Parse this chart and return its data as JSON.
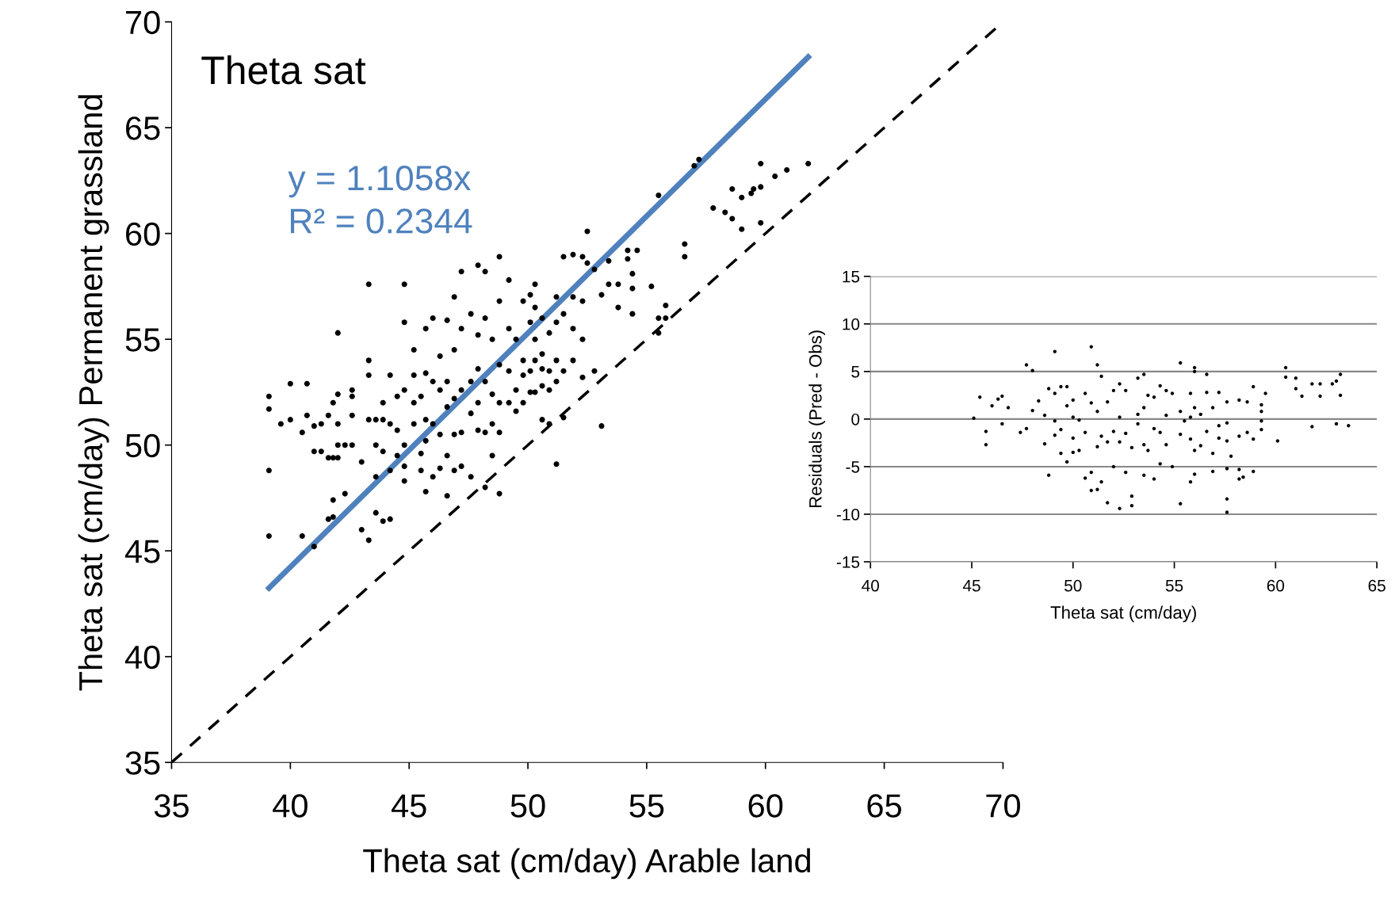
{
  "chart_data": [
    {
      "type": "scatter",
      "title": "Theta sat",
      "xlabel": "Theta sat (cm/day) Arable land",
      "ylabel": "Theta sat (cm/day) Permanent grassland",
      "xlim": [
        35,
        70
      ],
      "ylim": [
        35,
        70
      ],
      "xticks": [
        35,
        40,
        45,
        50,
        55,
        60,
        65,
        70
      ],
      "yticks": [
        35,
        40,
        45,
        50,
        55,
        60,
        65,
        70
      ],
      "grid": false,
      "annotations": [
        "y = 1.1058x",
        "R² = 0.2344"
      ],
      "series": [
        {
          "color": "#000000",
          "marker": "circle",
          "x": [
            39.1,
            39.1,
            39.1,
            39.1,
            39.6,
            40.0,
            40.0,
            40.5,
            40.5,
            40.7,
            40.7,
            41.0,
            41.0,
            41.0,
            41.3,
            41.3,
            41.6,
            41.6,
            41.6,
            41.8,
            41.8,
            41.8,
            41.8,
            42.0,
            42.0,
            42.0,
            42.0,
            42.0,
            42.3,
            42.3,
            42.6,
            42.6,
            42.6,
            42.6,
            43.0,
            43.0,
            43.3,
            43.3,
            43.3,
            43.3,
            43.3,
            43.6,
            43.6,
            43.6,
            43.6,
            43.9,
            43.9,
            43.9,
            43.9,
            44.2,
            44.2,
            44.2,
            44.2,
            44.5,
            44.5,
            44.5,
            44.8,
            44.8,
            44.8,
            44.8,
            44.8,
            44.8,
            45.2,
            45.2,
            45.2,
            45.2,
            45.5,
            45.5,
            45.5,
            45.7,
            45.7,
            45.7,
            45.7,
            45.7,
            46.0,
            46.0,
            46.0,
            46.0,
            46.3,
            46.3,
            46.3,
            46.3,
            46.6,
            46.6,
            46.6,
            46.6,
            46.6,
            46.9,
            46.9,
            46.9,
            46.9,
            46.9,
            47.2,
            47.2,
            47.2,
            47.2,
            47.2,
            47.6,
            47.6,
            47.6,
            47.6,
            47.9,
            47.9,
            47.9,
            47.9,
            47.9,
            48.2,
            48.2,
            48.2,
            48.2,
            48.2,
            48.5,
            48.5,
            48.5,
            48.5,
            48.8,
            48.8,
            48.8,
            48.8,
            48.8,
            48.8,
            49.2,
            49.2,
            49.2,
            49.2,
            49.5,
            49.5,
            49.5,
            49.8,
            49.8,
            49.8,
            49.8,
            50.1,
            50.1,
            50.1,
            50.1,
            50.3,
            50.3,
            50.3,
            50.3,
            50.3,
            50.6,
            50.6,
            50.6,
            50.6,
            50.6,
            50.9,
            50.9,
            50.9,
            50.9,
            51.2,
            51.2,
            51.2,
            51.2,
            51.2,
            51.5,
            51.5,
            51.5,
            51.5,
            51.9,
            51.9,
            51.9,
            51.9,
            52.3,
            52.3,
            52.3,
            52.3,
            52.5,
            52.5,
            52.8,
            52.8,
            53.1,
            53.1,
            53.4,
            53.4,
            53.8,
            53.8,
            54.2,
            54.2,
            54.4,
            54.4,
            54.4,
            54.6,
            55.2,
            55.5,
            55.5,
            55.5,
            55.8,
            55.8,
            56.6,
            56.6,
            57.0,
            57.2,
            57.8,
            58.3,
            58.6,
            58.6,
            59.0,
            59.0,
            59.4,
            59.5,
            59.8,
            59.8,
            59.8,
            60.4,
            60.9,
            61.8
          ],
          "values": [
            52.3,
            51.7,
            48.8,
            45.7,
            51.0,
            52.9,
            51.2,
            45.7,
            50.6,
            52.9,
            51.4,
            45.2,
            49.7,
            50.9,
            51.0,
            49.7,
            49.4,
            51.4,
            46.5,
            49.4,
            47.4,
            52.0,
            46.6,
            55.3,
            52.4,
            51.0,
            49.4,
            50.0,
            50.0,
            47.7,
            52.6,
            51.4,
            52.3,
            50.0,
            49.2,
            46.0,
            57.6,
            54.0,
            53.3,
            51.2,
            45.5,
            50.0,
            51.2,
            48.5,
            46.8,
            52.0,
            51.2,
            49.7,
            46.4,
            53.3,
            51.0,
            48.8,
            46.5,
            50.7,
            52.3,
            49.5,
            57.6,
            55.8,
            52.6,
            50.0,
            48.3,
            49.0,
            54.5,
            51.0,
            53.3,
            52.0,
            52.3,
            49.6,
            48.8,
            55.5,
            53.4,
            51.2,
            50.2,
            47.8,
            56.0,
            53.0,
            51.0,
            48.5,
            54.2,
            52.6,
            50.5,
            48.9,
            55.9,
            53.0,
            51.8,
            49.5,
            47.6,
            57.0,
            54.5,
            52.2,
            50.5,
            48.8,
            58.2,
            55.5,
            52.6,
            50.6,
            49.0,
            56.2,
            53.0,
            51.5,
            48.5,
            58.5,
            55.2,
            53.6,
            52.0,
            50.7,
            58.2,
            56.0,
            53.0,
            50.6,
            48.0,
            55.0,
            52.4,
            51.0,
            49.5,
            58.9,
            56.8,
            53.8,
            52.0,
            50.6,
            47.7,
            57.8,
            55.5,
            53.5,
            52.0,
            55.0,
            52.6,
            51.6,
            56.8,
            54.0,
            53.3,
            52.0,
            57.1,
            55.8,
            53.5,
            52.5,
            57.6,
            56.5,
            55.0,
            54.0,
            52.5,
            56.0,
            54.3,
            53.6,
            52.8,
            51.2,
            55.3,
            53.5,
            52.6,
            51.0,
            57.0,
            55.8,
            54.0,
            53.0,
            49.1,
            58.9,
            56.2,
            53.5,
            51.3,
            59.0,
            57.0,
            55.5,
            54.0,
            58.9,
            56.8,
            55.0,
            53.2,
            60.1,
            58.6,
            58.3,
            53.5,
            57.1,
            50.9,
            58.7,
            57.6,
            57.6,
            56.5,
            59.2,
            58.8,
            58.1,
            57.4,
            56.2,
            59.2,
            57.5,
            61.8,
            55.3,
            56.0,
            56.6,
            56.0,
            59.5,
            58.9,
            63.2,
            63.5,
            61.2,
            61.0,
            62.1,
            60.7,
            61.7,
            60.2,
            61.9,
            62.1,
            63.3,
            62.2,
            60.5,
            62.7,
            63.0,
            63.3
          ]
        },
        {
          "type": "line",
          "color": "#4f81bd",
          "marker": "none",
          "line_style": "solid",
          "x": [
            39.1,
            61.8
          ],
          "values": [
            43.24,
            68.34
          ]
        },
        {
          "type": "line",
          "color": "#000000",
          "marker": "none",
          "line_style": "dashed",
          "x": [
            35,
            70
          ],
          "values": [
            35,
            70
          ]
        }
      ]
    },
    {
      "type": "scatter",
      "xlabel": "Theta sat (cm/day)",
      "ylabel": "Residuals (Pred - Obs)",
      "xlim": [
        40,
        65
      ],
      "ylim": [
        -15,
        15
      ],
      "xticks": [
        40,
        45,
        50,
        55,
        60,
        65
      ],
      "yticks": [
        -15,
        -10,
        -5,
        0,
        5,
        10,
        15
      ],
      "grid": "y",
      "series": [
        {
          "color": "#000000",
          "marker": "circle",
          "x": [
            45.1,
            45.4,
            45.7,
            45.7,
            46.0,
            46.3,
            46.5,
            46.5,
            46.8,
            47.4,
            47.7,
            47.7,
            48.0,
            48.0,
            48.3,
            48.6,
            48.6,
            48.8,
            48.8,
            49.1,
            49.1,
            49.1,
            49.1,
            49.4,
            49.4,
            49.4,
            49.7,
            49.7,
            49.7,
            50.0,
            50.0,
            50.0,
            50.0,
            50.3,
            50.3,
            50.6,
            50.6,
            50.6,
            50.9,
            50.9,
            50.9,
            50.9,
            51.2,
            51.2,
            51.2,
            51.2,
            51.4,
            51.4,
            51.4,
            51.7,
            51.7,
            51.7,
            52.0,
            52.0,
            52.0,
            52.3,
            52.3,
            52.3,
            52.3,
            52.6,
            52.6,
            52.6,
            52.9,
            52.9,
            52.9,
            53.2,
            53.2,
            53.2,
            53.5,
            53.5,
            53.5,
            53.5,
            53.7,
            53.7,
            54.0,
            54.0,
            54.0,
            54.3,
            54.3,
            54.3,
            54.6,
            54.6,
            54.6,
            54.9,
            54.9,
            55.3,
            55.3,
            55.3,
            55.3,
            55.5,
            55.8,
            55.8,
            55.8,
            55.8,
            56.0,
            56.0,
            56.0,
            56.0,
            56.0,
            56.3,
            56.3,
            56.6,
            56.6,
            56.6,
            56.9,
            56.9,
            56.9,
            57.2,
            57.2,
            57.2,
            57.6,
            57.6,
            57.6,
            57.6,
            57.6,
            57.6,
            57.8,
            58.2,
            58.2,
            58.2,
            58.2,
            58.4,
            58.6,
            58.6,
            58.9,
            58.9,
            58.9,
            59.3,
            59.3,
            59.3,
            59.3,
            59.5,
            60.1,
            60.5,
            60.5,
            61.0,
            61.0,
            61.3,
            61.8,
            61.8,
            62.2,
            62.2,
            62.8,
            63.0,
            63.2,
            63.2,
            63.0,
            63.6
          ],
          "values": [
            0.1,
            2.3,
            -1.3,
            -2.7,
            1.4,
            2.1,
            2.4,
            -0.5,
            1.2,
            -1.4,
            5.7,
            -1.0,
            5.1,
            0.9,
            1.9,
            0.4,
            -2.6,
            3.2,
            -5.9,
            7.1,
            2.7,
            -0.2,
            -1.7,
            3.4,
            -1.1,
            -3.6,
            3.4,
            1.4,
            -4.5,
            2.0,
            0.2,
            -2.0,
            -3.5,
            -0.1,
            -3.3,
            2.7,
            -1.4,
            -6.2,
            7.6,
            1.7,
            -5.6,
            -7.5,
            5.7,
            0.8,
            -2.9,
            -7.4,
            4.5,
            -1.8,
            -6.6,
            1.8,
            -2.4,
            -8.8,
            3.0,
            -1.3,
            -5.0,
            3.7,
            0.2,
            -2.4,
            -9.4,
            3.0,
            -1.5,
            -5.6,
            -8.1,
            -9.1,
            -3.0,
            4.3,
            0.5,
            -0.5,
            4.7,
            1.2,
            -2.7,
            -5.9,
            2.5,
            -3.3,
            2.3,
            -1.0,
            -6.3,
            3.5,
            -1.4,
            -4.7,
            3.0,
            0.4,
            -2.7,
            2.7,
            -5.0,
            5.9,
            0.8,
            -1.6,
            -8.9,
            -0.2,
            2.7,
            0.2,
            -2.1,
            -6.6,
            5.4,
            5.0,
            1.2,
            -3.3,
            -5.8,
            0.5,
            -2.8,
            4.7,
            2.8,
            -1.3,
            1.2,
            -3.6,
            -5.5,
            2.8,
            -0.7,
            -2.0,
            1.8,
            -0.4,
            -2.3,
            -5.2,
            -8.4,
            -9.8,
            -3.9,
            2.0,
            -1.8,
            -5.3,
            -6.3,
            -6.1,
            1.8,
            -1.4,
            3.4,
            -2.1,
            -5.5,
            1.5,
            0.8,
            -0.2,
            -1.1,
            2.7,
            -2.3,
            5.4,
            4.4,
            4.3,
            3.2,
            2.4,
            3.7,
            -0.8,
            3.7,
            2.4,
            3.7,
            4.0,
            4.7,
            2.5,
            -0.5,
            -0.7
          ]
        }
      ]
    }
  ]
}
